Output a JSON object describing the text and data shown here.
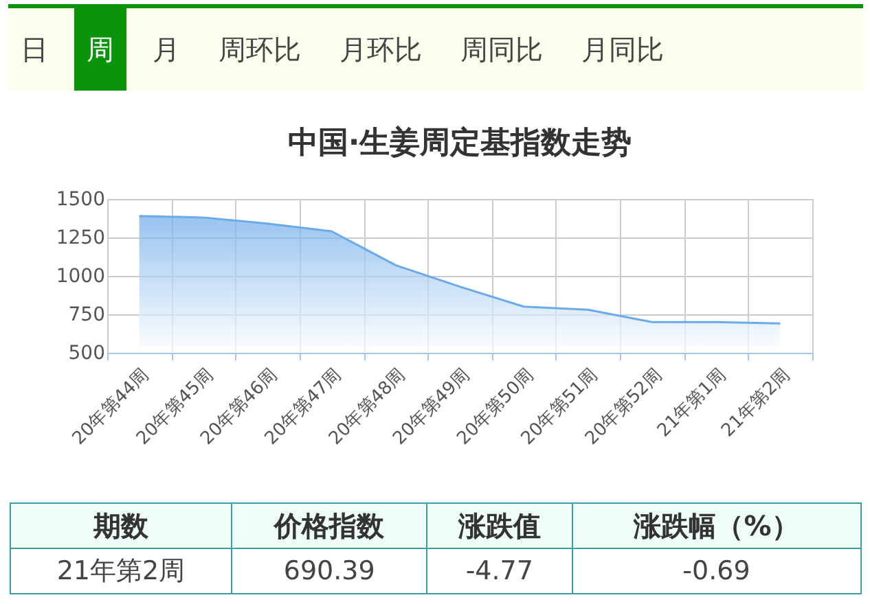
{
  "chart_data": {
    "type": "area",
    "title": "中国·生姜周定基指数走势",
    "categories": [
      "20年第44周",
      "20年第45周",
      "20年第46周",
      "20年第47周",
      "20年第48周",
      "20年第49周",
      "20年第50周",
      "20年第51周",
      "20年第52周",
      "21年第1周",
      "21年第2周"
    ],
    "series": [
      {
        "color": "#6aaae8",
        "values": [
          1390,
          1380,
          1340,
          1290,
          1070,
          930,
          800,
          780,
          700,
          700,
          690.39
        ]
      }
    ],
    "ylim": [
      500,
      1500
    ],
    "yticks": [
      500,
      750,
      1000,
      1250,
      1500
    ],
    "grid": true,
    "annotations": [
      "日",
      "周",
      "月",
      "周环比",
      "月环比",
      "周同比",
      "月同比",
      "期数",
      "价格指数",
      "涨跌值",
      "涨跌幅（%）",
      "21年第2周",
      "690.39",
      "-4.77",
      "-0.69"
    ]
  }
}
